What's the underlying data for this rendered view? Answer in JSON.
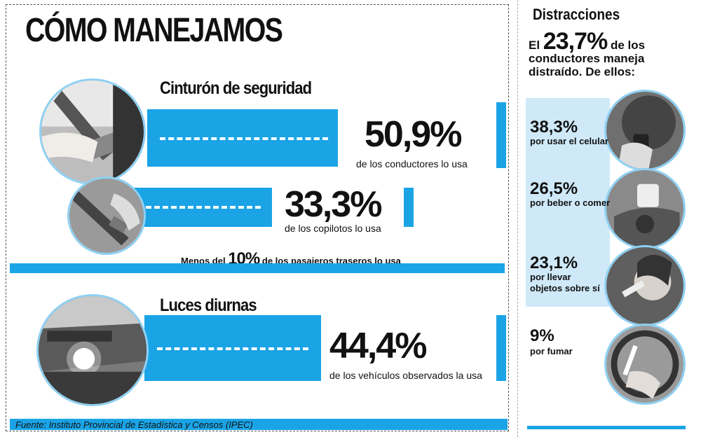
{
  "title": "CÓMO MANEJAMOS",
  "chart_data": [
    {
      "type": "bar",
      "section": "Cinturón de seguridad",
      "categories": [
        "de los conductores lo usa",
        "de los copilotos lo usa",
        "de los pasajeros traseros lo usa"
      ],
      "values": [
        50.9,
        33.3,
        10
      ],
      "value_labels": [
        "50,9%",
        "33,3%",
        "10%"
      ],
      "rear_prefix": "Menos del",
      "rear_suffix": "de los pasajeros traseros lo usa",
      "unit": "%"
    },
    {
      "type": "bar",
      "section": "Luces diurnas",
      "categories": [
        "de los vehículos observados la usa"
      ],
      "values": [
        44.4
      ],
      "value_labels": [
        "44,4%"
      ],
      "unit": "%"
    },
    {
      "type": "bar",
      "section": "Distracciones",
      "total_label": "23,7%",
      "total_value": 23.7,
      "intro_prefix": "El",
      "intro_suffix": "de los conductores maneja distraído. De ellos:",
      "categories": [
        "por usar el celular",
        "por beber o comer",
        "por llevar objetos sobre sí",
        "por fumar"
      ],
      "values": [
        38.3,
        26.5,
        23.1,
        9
      ],
      "value_labels": [
        "38,3%",
        "26,5%",
        "23,1%",
        "9%"
      ],
      "unit": "%"
    }
  ],
  "source": "Fuente: Instituto Provincial de Estadística y Censos (IPEC)",
  "colors": {
    "accent": "#1aa4e6",
    "light": "#cfe9f8",
    "ring": "#8fd0f2"
  }
}
